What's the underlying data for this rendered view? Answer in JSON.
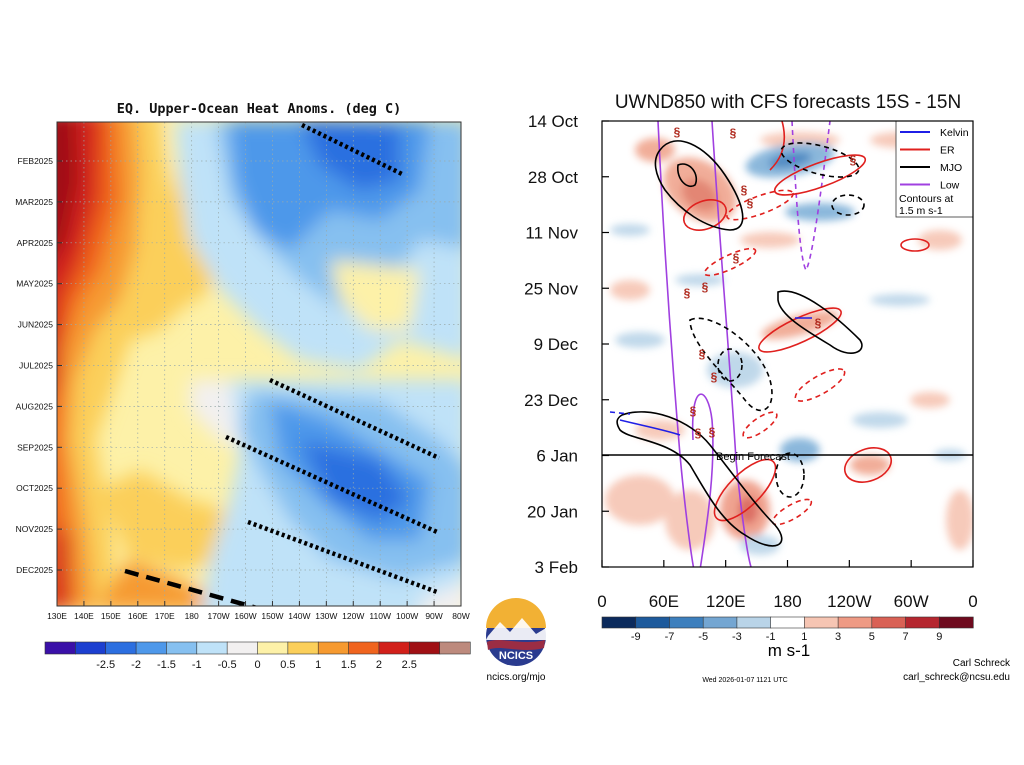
{
  "chart_data": [
    {
      "type": "heatmap",
      "title": "EQ. Upper-Ocean Heat Anoms. (deg C)",
      "x_tick_labels": [
        "130E",
        "140E",
        "150E",
        "160E",
        "170E",
        "180",
        "170W",
        "160W",
        "150W",
        "140W",
        "130W",
        "120W",
        "110W",
        "100W",
        "90W",
        "80W"
      ],
      "y_tick_labels": [
        "FEB2025",
        "MAR2025",
        "APR2025",
        "MAY2025",
        "JUN2025",
        "JUL2025",
        "AUG2025",
        "SEP2025",
        "OCT2025",
        "NOV2025",
        "DEC2025"
      ],
      "colorbar": {
        "labels": [
          "-2.5",
          "-2",
          "-1.5",
          "-1",
          "-0.5",
          "0",
          "0.5",
          "1",
          "1.5",
          "2",
          "2.5"
        ],
        "colors": [
          "#3a10a8",
          "#1c3fd0",
          "#2c6fe0",
          "#4e98ea",
          "#86c0f0",
          "#bfe2f8",
          "#f2f0f0",
          "#fdf1a8",
          "#fbcf5a",
          "#f69a30",
          "#f0641e",
          "#d2201a",
          "#a01014",
          "#bd8a7d"
        ]
      }
    },
    {
      "type": "heatmap",
      "title": "UWND850 with CFS forecasts  15S - 15N",
      "y_tick_labels": [
        "14 Oct",
        "28 Oct",
        "11 Nov",
        "25 Nov",
        "9 Dec",
        "23 Dec",
        "6 Jan",
        "20 Jan",
        "3 Feb"
      ],
      "x_tick_labels": [
        "0",
        "60E",
        "120E",
        "180",
        "120W",
        "60W",
        "0"
      ],
      "forecast_label": "Begin Forecast",
      "legend": {
        "entries": [
          {
            "name": "Kelvin",
            "color": "#1f1fe6"
          },
          {
            "name": "ER",
            "color": "#e0201e"
          },
          {
            "name": "MJO",
            "color": "#000000"
          },
          {
            "name": "Low",
            "color": "#a040e0"
          }
        ],
        "note_line1": "Contours at",
        "note_line2": "1.5 m s-1"
      },
      "colorbar": {
        "labels": [
          "-9",
          "-7",
          "-5",
          "-3",
          "-1",
          "1",
          "3",
          "5",
          "7",
          "9"
        ],
        "colors": [
          "#0b2a5c",
          "#1d5a9c",
          "#3d7fbd",
          "#74a6d2",
          "#b9d4e8",
          "#ffffff",
          "#f6c5b3",
          "#ee9a84",
          "#d96155",
          "#b5262f",
          "#6e0a1e"
        ],
        "units": "m s-1"
      }
    }
  ],
  "footer": {
    "left_url": "ncics.org/mjo",
    "logo_text": "NCICS",
    "timestamp": "Wed 2026-01-07 1121 UTC",
    "author": "Carl Schreck",
    "email": "carl_schreck@ncsu.edu"
  },
  "colors": {
    "left_field": [
      "#a01014",
      "#d2201a",
      "#f0641e",
      "#f69a30",
      "#fbcf5a",
      "#fdf1a8",
      "#bfe2f8",
      "#86c0f0",
      "#4e98ea",
      "#2c6fe0"
    ],
    "right_field_pos": "#f0a58e",
    "right_field_neg": "#7fb0d8"
  }
}
